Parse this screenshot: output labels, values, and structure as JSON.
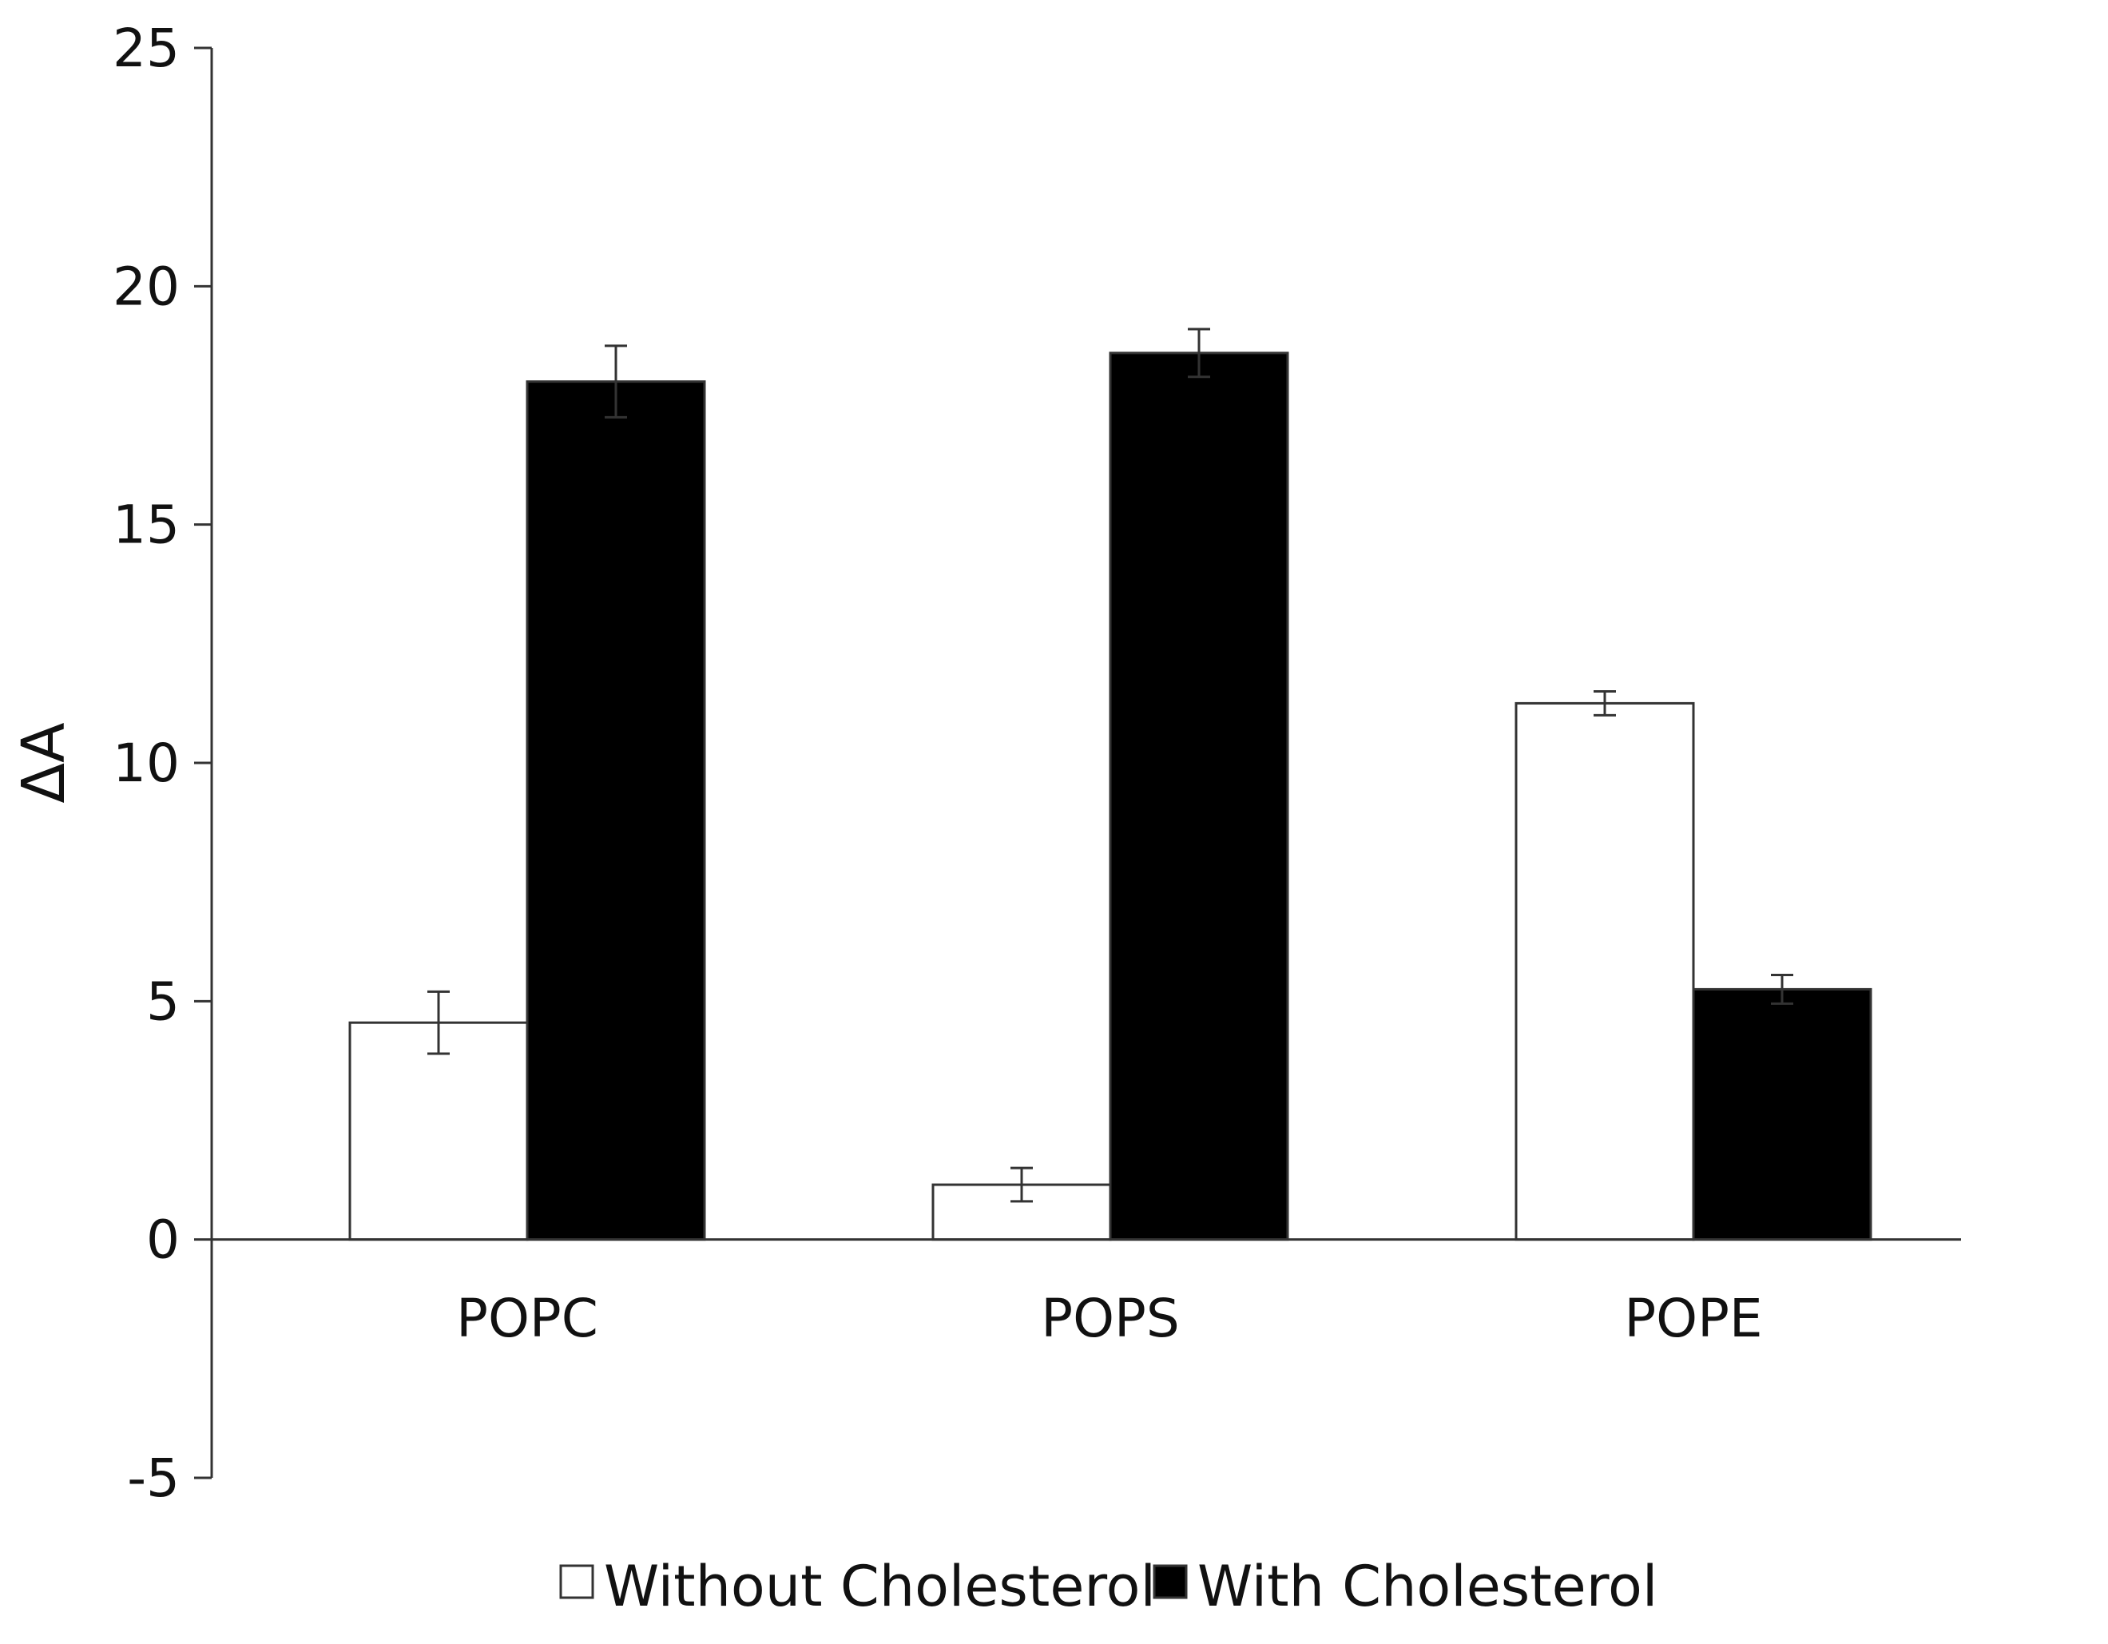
{
  "chart_data": {
    "type": "bar",
    "title": "",
    "xlabel": "",
    "ylabel": "ΔA",
    "ylim": [
      -5,
      25
    ],
    "yticks": [
      -5,
      0,
      5,
      10,
      15,
      20,
      25
    ],
    "grid": false,
    "legend": {
      "position": "bottom"
    },
    "categories": [
      "POPC",
      "POPS",
      "POPE"
    ],
    "series": [
      {
        "name": "Without Cholesterol",
        "color": "#ffffff",
        "values": [
          4.55,
          1.15,
          11.25
        ],
        "errors": [
          0.65,
          0.35,
          0.25
        ]
      },
      {
        "name": "With Cholesterol",
        "color": "#000000",
        "values": [
          18.0,
          18.6,
          5.25
        ],
        "errors": [
          0.75,
          0.5,
          0.3
        ]
      }
    ]
  }
}
